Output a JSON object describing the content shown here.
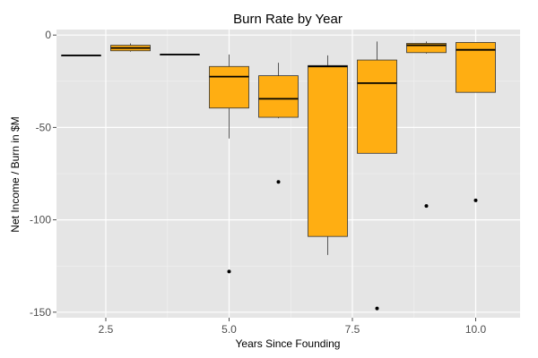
{
  "colors": {
    "panel_bg": "#E5E5E5",
    "grid_major": "#FFFFFF",
    "grid_minor": "#F2F2F2",
    "box_fill": "#FFAE12",
    "box_line": "#333333",
    "tick_color": "#4D4D4D"
  },
  "chart_data": {
    "type": "boxplot",
    "title": "Burn Rate by Year",
    "xlabel": "Years Since Founding",
    "ylabel": "Net Income / Burn in $M",
    "xlim": [
      1.5,
      10.9
    ],
    "ylim": [
      -153,
      3
    ],
    "xticks": [
      2.5,
      5.0,
      7.5,
      10.0
    ],
    "xtick_labels": [
      "2.5",
      "5.0",
      "7.5",
      "10.0"
    ],
    "yticks": [
      0,
      -50,
      -100,
      -150
    ],
    "ytick_labels": [
      "0",
      "-50",
      "-100",
      "-150"
    ],
    "grid": true,
    "boxes": [
      {
        "x": 2,
        "min": -11,
        "q1": -11,
        "median": -11,
        "q3": -11,
        "max": -11,
        "outliers": []
      },
      {
        "x": 3,
        "min": -9,
        "q1": -8.5,
        "median": -7,
        "q3": -5.5,
        "max": -4.5,
        "outliers": []
      },
      {
        "x": 4,
        "min": -10.5,
        "q1": -10.5,
        "median": -10.5,
        "q3": -10.5,
        "max": -10.5,
        "outliers": []
      },
      {
        "x": 5,
        "min": -56,
        "q1": -39.5,
        "median": -22.5,
        "q3": -17,
        "max": -10.5,
        "outliers": [
          -128
        ]
      },
      {
        "x": 6,
        "min": -45,
        "q1": -44.5,
        "median": -34.5,
        "q3": -22,
        "max": -15,
        "outliers": [
          -79.5
        ]
      },
      {
        "x": 7,
        "min": -119,
        "q1": -109,
        "median": -17,
        "q3": -16.5,
        "max": -11,
        "outliers": []
      },
      {
        "x": 8,
        "min": -64,
        "q1": -64,
        "median": -26,
        "q3": -13.5,
        "max": -3.5,
        "outliers": [
          -148
        ]
      },
      {
        "x": 9,
        "min": -10,
        "q1": -9.5,
        "median": -5.5,
        "q3": -4.5,
        "max": -3.5,
        "outliers": [
          -92.5
        ]
      },
      {
        "x": 10,
        "min": -31,
        "q1": -31,
        "median": -8,
        "q3": -4,
        "max": -4,
        "outliers": [
          -89.5
        ]
      }
    ]
  }
}
